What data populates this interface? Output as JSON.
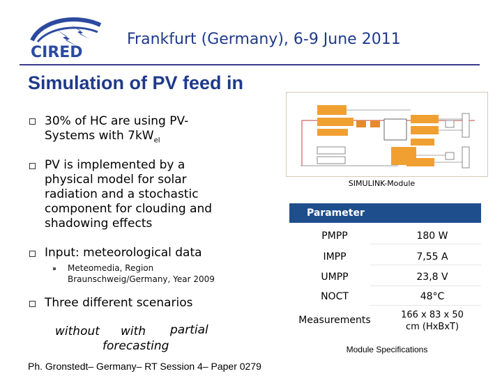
{
  "header": {
    "logo_text": "CIRED",
    "title": "Frankfurt (Germany), 6-9 June 2011"
  },
  "slide_title": "Simulation of PV feed in",
  "bullets": [
    {
      "line1": "30% of HC are using PV-",
      "line2_text": "Systems with 7kW",
      "line2_sub": "el"
    },
    {
      "lines": [
        "PV is implemented by a",
        "physical model for solar",
        "radiation and a stochastic",
        "component for clouding and",
        "shadowing effects"
      ]
    },
    {
      "text": "Input: meteorological data",
      "sub": [
        "Meteomedia, Region",
        "Braunschweig/Germany, Year 2009"
      ]
    },
    {
      "text": "Three different scenarios"
    }
  ],
  "scenarios": {
    "without": "without",
    "with": "with",
    "partial": "partial",
    "forecasting": "forecasting"
  },
  "diagram_caption": "SIMULINK-Module",
  "parameter_table": {
    "header": "Parameter",
    "rows": [
      {
        "name": "PMPP",
        "value": "180 W"
      },
      {
        "name": "IMPP",
        "value": "7,55 A"
      },
      {
        "name": "UMPP",
        "value": "23,8 V"
      },
      {
        "name": "NOCT",
        "value": "48°C"
      },
      {
        "name": "Measurements",
        "value_line1": "166  x 83 x 50",
        "value_line2": "cm (HxBxT)"
      }
    ],
    "caption": "Module Specifications"
  },
  "footer": "Ph. Gronstedt– Germany– RT Session 4– Paper 0279",
  "colors": {
    "title_blue": "#1f3a8a",
    "table_header": "#1f4e8c",
    "diagram_orange": "#f0a030"
  }
}
